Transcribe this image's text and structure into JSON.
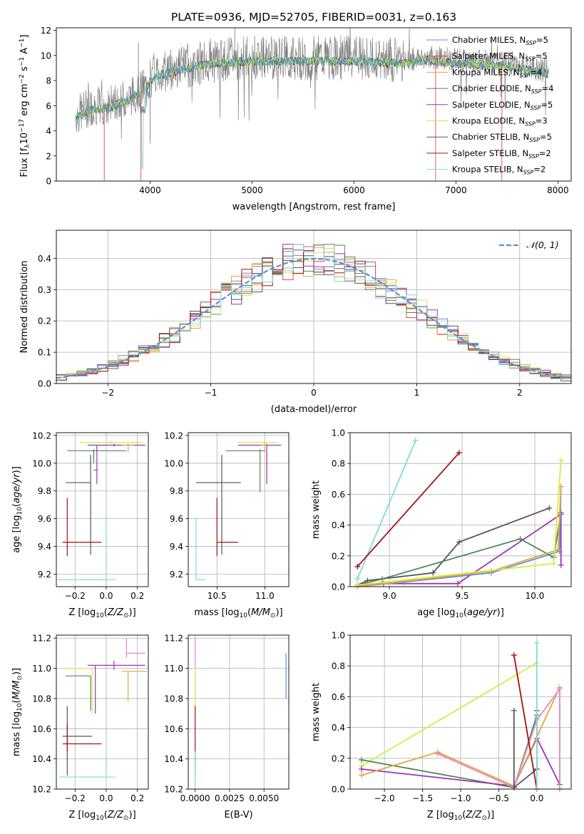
{
  "title": "PLATE=0936, MJD=52705, FIBERID=0031, z=0.163",
  "colors": {
    "chabrier_miles": "#5b8fd6",
    "salpeter_miles": "#e5494f",
    "kroupa_miles": "#e8a33a",
    "chabrier_elodie": "#4e8a57",
    "salpeter_elodie": "#9a35b3",
    "kroupa_elodie": "#d6ea45",
    "chabrier_stelib": "#555555",
    "salpeter_stelib": "#a31111",
    "kroupa_stelib": "#7fdbdb",
    "data": "#808080",
    "normal": "#5b8fd6",
    "grid": "#b0b0b0",
    "pink": "#e38ac8"
  },
  "legend": [
    {
      "label": "Chabrier MILES, N",
      "sub": "SSP",
      "val": "=5",
      "color": "chabrier_miles"
    },
    {
      "label": "Salpeter MILES, N",
      "sub": "SSP",
      "val": "=5",
      "color": "salpeter_miles"
    },
    {
      "label": "Kroupa MILES, N",
      "sub": "SSP",
      "val": "=4",
      "color": "kroupa_miles"
    },
    {
      "label": "Chabrier ELODIE, N",
      "sub": "SSP",
      "val": "=4",
      "color": "chabrier_elodie"
    },
    {
      "label": "Salpeter ELODIE, N",
      "sub": "SSP",
      "val": "=5",
      "color": "salpeter_elodie"
    },
    {
      "label": "Kroupa ELODIE, N",
      "sub": "SSP",
      "val": "=3",
      "color": "kroupa_elodie"
    },
    {
      "label": "Chabrier STELIB, N",
      "sub": "SSP",
      "val": "=5",
      "color": "chabrier_stelib"
    },
    {
      "label": "Salpeter STELIB, N",
      "sub": "SSP",
      "val": "=2",
      "color": "salpeter_stelib"
    },
    {
      "label": "Kroupa STELIB, N",
      "sub": "SSP",
      "val": "=2",
      "color": "kroupa_stelib"
    }
  ],
  "chart_data": [
    {
      "id": "spectrum",
      "type": "line",
      "xlabel": "wavelength [Angstrom, rest frame]",
      "ylabel": "Flux [fλ10⁻¹⁷ erg cm⁻² s⁻¹ A⁻¹]",
      "xlim": [
        3080,
        8130
      ],
      "ylim": [
        0,
        12.2
      ],
      "xticks": [
        4000,
        5000,
        6000,
        7000,
        8000
      ],
      "yticks": [
        0,
        2,
        4,
        6,
        8,
        10,
        12
      ],
      "grid": false,
      "legend_position": "top-right",
      "continuum": [
        [
          3270,
          5.2
        ],
        [
          3400,
          5.9
        ],
        [
          3600,
          6.1
        ],
        [
          3800,
          6.7
        ],
        [
          3950,
          7.5
        ],
        [
          4050,
          8.6
        ],
        [
          4300,
          9.1
        ],
        [
          4600,
          9.6
        ],
        [
          5000,
          9.8
        ],
        [
          5500,
          9.8
        ],
        [
          6000,
          9.8
        ],
        [
          6500,
          9.6
        ],
        [
          6700,
          9.9
        ],
        [
          7000,
          9.6
        ],
        [
          7500,
          9.4
        ],
        [
          7900,
          8.8
        ]
      ],
      "spikes": [
        [
          3550,
          0.0
        ],
        [
          3910,
          0.0
        ],
        [
          6800,
          0.0
        ],
        [
          7450,
          0.0
        ],
        [
          4830,
          12.2
        ],
        [
          3885,
          11.0
        ],
        [
          4000,
          3.0
        ]
      ]
    },
    {
      "id": "residuals",
      "type": "histogram",
      "xlabel": "(data-model)/error",
      "ylabel": "Normed distribution",
      "xlim": [
        -2.5,
        2.5
      ],
      "ylim": [
        0,
        0.49
      ],
      "xticks": [
        -2,
        -1,
        0,
        1,
        2
      ],
      "yticks": [
        0.0,
        0.1,
        0.2,
        0.3,
        0.4
      ],
      "grid": true,
      "bin_width": 0.1,
      "legend": "𝒩(0, 1)",
      "legend_position": "top-right",
      "reference": "normal(0,1)"
    },
    {
      "id": "age_vs_Z",
      "type": "errorbar",
      "xlabel": "Z [log₁₀(Z/Z⊙)]",
      "ylabel": "age  [log₁₀(age/yr)]",
      "xlim": [
        -0.32,
        0.27
      ],
      "ylim": [
        9.11,
        10.22
      ],
      "xticks": [
        -0.2,
        0.0,
        0.2
      ],
      "yticks": [
        9.2,
        9.4,
        9.6,
        9.8,
        10.0,
        10.2
      ],
      "points": [
        {
          "color": "kroupa_elodie",
          "x": 0.03,
          "xerr": [
            0.2,
            0.2
          ],
          "y": 10.15,
          "yerr": [
            0.01,
            0.01
          ]
        },
        {
          "color": "salpeter_elodie",
          "x": 0.05,
          "xerr": [
            0.17,
            0.2
          ],
          "y": 10.13,
          "yerr": [
            0.01,
            0.01
          ]
        },
        {
          "color": "kroupa_miles",
          "x": 0.14,
          "xerr": [
            0.04,
            0.04
          ],
          "y": 10.13,
          "yerr": [
            0.05,
            0.01
          ]
        },
        {
          "color": "chabrier_elodie",
          "x": -0.08,
          "xerr": [
            0.17,
            0.21
          ],
          "y": 10.09,
          "yerr": [
            0.09,
            0.01
          ]
        },
        {
          "color": "salpeter_elodie",
          "x": -0.06,
          "xerr": [
            0.02,
            0.0
          ],
          "y": 9.95,
          "yerr": [
            0.1,
            0.18
          ]
        },
        {
          "color": "chabrier_stelib",
          "x": -0.1,
          "xerr": [
            0.16,
            0.0
          ],
          "y": 9.86,
          "yerr": [
            0.52,
            0.2
          ]
        },
        {
          "color": "salpeter_stelib",
          "x": -0.25,
          "xerr": [
            0.03,
            0.22
          ],
          "y": 9.43,
          "yerr": [
            0.1,
            0.32
          ]
        },
        {
          "color": "kroupa_stelib",
          "x": 0.0,
          "xerr": [
            0.31,
            0.06
          ],
          "y": 9.16,
          "yerr": [
            0.0,
            0.45
          ]
        }
      ]
    },
    {
      "id": "age_vs_mass",
      "type": "errorbar",
      "xlabel": "mass [log₁₀(M/M⊙)]",
      "ylabel": "",
      "xlim": [
        10.2,
        11.25
      ],
      "ylim": [
        9.11,
        10.22
      ],
      "xticks": [
        10.5,
        11.0
      ],
      "yticks": [
        9.2,
        9.4,
        9.6,
        9.8,
        10.0,
        10.2
      ],
      "points": [
        {
          "color": "kroupa_elodie",
          "x": 10.99,
          "xerr": [
            0.28,
            0.15
          ],
          "y": 10.15,
          "yerr": [
            0.01,
            0.01
          ]
        },
        {
          "color": "salpeter_elodie",
          "x": 11.02,
          "xerr": [
            0.3,
            0.15
          ],
          "y": 10.13,
          "yerr": [
            0.01,
            0.01
          ]
        },
        {
          "color": "kroupa_miles",
          "x": 11.0,
          "xerr": [
            0.04,
            0.02
          ],
          "y": 10.13,
          "yerr": [
            0.05,
            0.01
          ]
        },
        {
          "color": "chabrier_elodie",
          "x": 10.95,
          "xerr": [
            0.36,
            0.05
          ],
          "y": 10.09,
          "yerr": [
            0.3,
            0.01
          ]
        },
        {
          "color": "salpeter_elodie",
          "x": 11.02,
          "xerr": [
            0.0,
            0.0
          ],
          "y": 9.95,
          "yerr": [
            0.1,
            0.18
          ]
        },
        {
          "color": "chabrier_stelib",
          "x": 10.55,
          "xerr": [
            0.27,
            0.2
          ],
          "y": 9.86,
          "yerr": [
            0.52,
            0.2
          ]
        },
        {
          "color": "salpeter_stelib",
          "x": 10.5,
          "xerr": [
            0.0,
            0.22
          ],
          "y": 9.43,
          "yerr": [
            0.1,
            0.32
          ]
        },
        {
          "color": "kroupa_stelib",
          "x": 10.28,
          "xerr": [
            0.0,
            0.1
          ],
          "y": 9.16,
          "yerr": [
            0.0,
            0.45
          ]
        }
      ]
    },
    {
      "id": "weight_vs_age",
      "type": "line",
      "xlabel": "age  [log₁₀(age/yr)]",
      "ylabel": "mass weight",
      "xlim": [
        8.73,
        10.25
      ],
      "ylim": [
        0,
        1.0
      ],
      "xticks": [
        9.0,
        9.5,
        10.0
      ],
      "yticks": [
        0.0,
        0.2,
        0.4,
        0.6,
        0.8,
        1.0
      ],
      "grid": true,
      "series": [
        {
          "color": "kroupa_stelib",
          "x": [
            8.78,
            9.18
          ],
          "y": [
            0.05,
            0.95
          ]
        },
        {
          "color": "salpeter_stelib",
          "x": [
            8.78,
            9.48
          ],
          "y": [
            0.13,
            0.87
          ]
        },
        {
          "color": "chabrier_stelib",
          "x": [
            8.78,
            8.85,
            9.3,
            9.48,
            10.1
          ],
          "y": [
            0.01,
            0.04,
            0.09,
            0.29,
            0.51
          ]
        },
        {
          "color": "salpeter_elodie",
          "x": [
            8.78,
            8.96,
            9.47,
            10.18,
            10.18
          ],
          "y": [
            0.01,
            0.02,
            0.02,
            0.47,
            0.14
          ]
        },
        {
          "color": "chabrier_elodie",
          "x": [
            8.78,
            8.95,
            9.9,
            10.13,
            10.18
          ],
          "y": [
            0.01,
            0.05,
            0.31,
            0.19,
            0.48
          ]
        },
        {
          "color": "chabrier_miles",
          "x": [
            8.78,
            9.1,
            9.7,
            10.17,
            10.18
          ],
          "y": [
            0.0,
            0.03,
            0.09,
            0.23,
            0.65
          ]
        },
        {
          "color": "kroupa_miles",
          "x": [
            8.78,
            9.7,
            10.16,
            10.18
          ],
          "y": [
            0.0,
            0.1,
            0.24,
            0.65
          ]
        },
        {
          "color": "kroupa_elodie",
          "x": [
            8.78,
            10.13,
            10.18
          ],
          "y": [
            0.01,
            0.15,
            0.82
          ]
        }
      ]
    },
    {
      "id": "mass_vs_Z",
      "type": "errorbar",
      "xlabel": "Z [log₁₀(Z/Z⊙)]",
      "ylabel": "mass [log₁₀(M/M⊙)]",
      "xlim": [
        -0.32,
        0.27
      ],
      "ylim": [
        10.2,
        11.22
      ],
      "xticks": [
        -0.2,
        0.0,
        0.2
      ],
      "yticks": [
        10.2,
        10.4,
        10.6,
        10.8,
        11.0,
        11.2
      ],
      "points": [
        {
          "color": "pink",
          "x": 0.13,
          "xerr": [
            0.0,
            0.12
          ],
          "y": 11.1,
          "yerr": [
            0.03,
            0.1
          ]
        },
        {
          "color": "salpeter_elodie",
          "x": 0.05,
          "xerr": [
            0.17,
            0.2
          ],
          "y": 11.02,
          "yerr": [
            0.03,
            0.03
          ]
        },
        {
          "color": "kroupa_miles",
          "x": 0.14,
          "xerr": [
            0.04,
            0.12
          ],
          "y": 10.98,
          "yerr": [
            0.2,
            0.0
          ]
        },
        {
          "color": "kroupa_elodie",
          "x": -0.09,
          "xerr": [
            0.2,
            0.0
          ],
          "y": 11.0,
          "yerr": [
            0.3,
            0.0
          ]
        },
        {
          "color": "chabrier_elodie",
          "x": -0.1,
          "xerr": [
            0.16,
            0.0
          ],
          "y": 10.95,
          "yerr": [
            0.23,
            0.0
          ]
        },
        {
          "color": "salpeter_elodie",
          "x": -0.07,
          "xerr": [
            0.0,
            0.0
          ],
          "y": 10.95,
          "yerr": [
            0.25,
            0.07
          ]
        },
        {
          "color": "chabrier_stelib",
          "x": -0.25,
          "xerr": [
            0.03,
            0.16
          ],
          "y": 10.55,
          "yerr": [
            0.26,
            0.2
          ]
        },
        {
          "color": "salpeter_stelib",
          "x": -0.25,
          "xerr": [
            0.03,
            0.22
          ],
          "y": 10.5,
          "yerr": [
            0.05,
            0.13
          ]
        },
        {
          "color": "kroupa_stelib",
          "x": 0.0,
          "xerr": [
            0.3,
            0.06
          ],
          "y": 10.28,
          "yerr": [
            0.0,
            0.18
          ]
        }
      ]
    },
    {
      "id": "mass_vs_ebv",
      "type": "errorbar",
      "xlabel": "E(B-V)",
      "ylabel": "",
      "xlim": [
        -0.0005,
        0.0068
      ],
      "ylim": [
        10.2,
        11.22
      ],
      "xticks": [
        0.0,
        0.0025,
        0.005
      ],
      "xticklabels": [
        "0.0000",
        "0.0025",
        "0.0050"
      ],
      "yticks": [
        10.2,
        10.4,
        10.6,
        10.8,
        11.0,
        11.2
      ],
      "points": [
        {
          "color": "pink",
          "x": 0.0,
          "xerr": [
            0,
            0
          ],
          "y": 11.1,
          "yerr": [
            0.1,
            0.1
          ]
        },
        {
          "color": "kroupa_elodie",
          "x": 0.0,
          "xerr": [
            0,
            0
          ],
          "y": 10.95,
          "yerr": [
            0.25,
            0.06
          ]
        },
        {
          "color": "salpeter_stelib",
          "x": 0.0,
          "xerr": [
            0,
            0
          ],
          "y": 10.55,
          "yerr": [
            0.25,
            0.2
          ]
        },
        {
          "color": "kroupa_stelib",
          "x": 0.0,
          "xerr": [
            0,
            0
          ],
          "y": 10.3,
          "yerr": [
            0.08,
            0.15
          ]
        },
        {
          "color": "chabrier_miles",
          "x": 0.0066,
          "xerr": [
            0,
            0
          ],
          "y": 10.95,
          "yerr": [
            0.15,
            0.15
          ]
        }
      ]
    },
    {
      "id": "weight_vs_Z",
      "type": "line",
      "xlabel": "Z [log₁₀(Z/Z⊙)]",
      "ylabel": "mass weight",
      "xlim": [
        -2.45,
        0.45
      ],
      "ylim": [
        0,
        1.0
      ],
      "xticks": [
        -2.0,
        -1.5,
        -1.0,
        -0.5,
        0.0
      ],
      "yticks": [
        0.0,
        0.2,
        0.4,
        0.6,
        0.8,
        1.0
      ],
      "grid": true,
      "series": [
        {
          "color": "kroupa_elodie",
          "x": [
            -2.3,
            0.0
          ],
          "y": [
            0.15,
            0.82
          ]
        },
        {
          "color": "chabrier_elodie",
          "x": [
            -2.3,
            -0.3,
            0.0
          ],
          "y": [
            0.19,
            0.01,
            0.48
          ]
        },
        {
          "color": "salpeter_elodie",
          "x": [
            -2.3,
            -0.3,
            0.0,
            0.3
          ],
          "y": [
            0.13,
            0.02,
            0.33,
            0.03
          ]
        },
        {
          "color": "kroupa_miles",
          "x": [
            -2.3,
            -1.3,
            -0.3,
            0.3,
            0.3
          ],
          "y": [
            0.09,
            0.24,
            0.02,
            0.66,
            0.0
          ]
        },
        {
          "color": "pink",
          "x": [
            -1.3,
            -0.3,
            0.0,
            0.3,
            0.3
          ],
          "y": [
            0.23,
            0.01,
            0.45,
            0.65,
            0.0
          ]
        },
        {
          "color": "chabrier_stelib",
          "x": [
            -0.3,
            -0.3,
            0.0,
            0.0
          ],
          "y": [
            0.51,
            0.01,
            0.13,
            0.51
          ]
        },
        {
          "color": "salpeter_stelib",
          "x": [
            -0.3,
            0.0
          ],
          "y": [
            0.87,
            0.0
          ]
        },
        {
          "color": "kroupa_stelib",
          "x": [
            0.0,
            0.0
          ],
          "y": [
            0.0,
            0.95
          ]
        }
      ]
    }
  ]
}
